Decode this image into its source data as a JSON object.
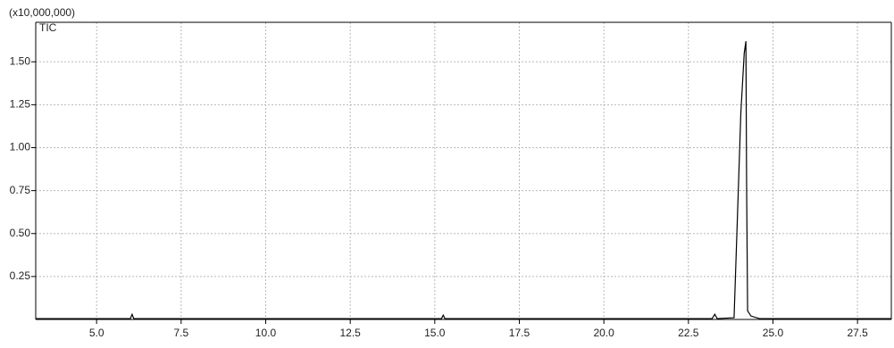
{
  "chart_data": {
    "type": "line",
    "title": "TIC",
    "y_unit": "(x10,000,000)",
    "x": [
      3.2,
      6.0,
      6.05,
      6.1,
      15.2,
      15.25,
      15.3,
      23.2,
      23.28,
      23.35,
      23.85,
      23.95,
      24.05,
      24.15,
      24.2,
      24.22,
      24.25,
      24.35,
      24.6,
      28.5
    ],
    "series": [
      {
        "name": "TIC",
        "color": "#000000",
        "values": [
          0.005,
          0.005,
          0.03,
          0.005,
          0.005,
          0.025,
          0.005,
          0.005,
          0.03,
          0.005,
          0.01,
          0.6,
          1.2,
          1.55,
          1.62,
          0.8,
          0.05,
          0.02,
          0.005,
          0.005
        ]
      }
    ],
    "xlim": [
      3.2,
      28.5
    ],
    "ylim": [
      0,
      1.73
    ],
    "xticks": [
      {
        "value": 5,
        "label": "5.0"
      },
      7.5,
      {
        "value": 10,
        "label": "10.0"
      },
      12.5,
      {
        "value": 15,
        "label": "15.0"
      },
      17.5,
      {
        "value": 20,
        "label": "20.0"
      },
      22.5,
      {
        "value": 25,
        "label": "25.0"
      },
      27.5
    ],
    "yticks": [
      {
        "value": 0.25,
        "label": "0.25"
      },
      {
        "value": 0.5,
        "label": "0.50"
      },
      {
        "value": 0.75,
        "label": "0.75"
      },
      {
        "value": 1,
        "label": "1.00"
      },
      {
        "value": 1.25,
        "label": "1.25"
      },
      {
        "value": 1.5,
        "label": "1.50"
      }
    ],
    "grid": true
  }
}
